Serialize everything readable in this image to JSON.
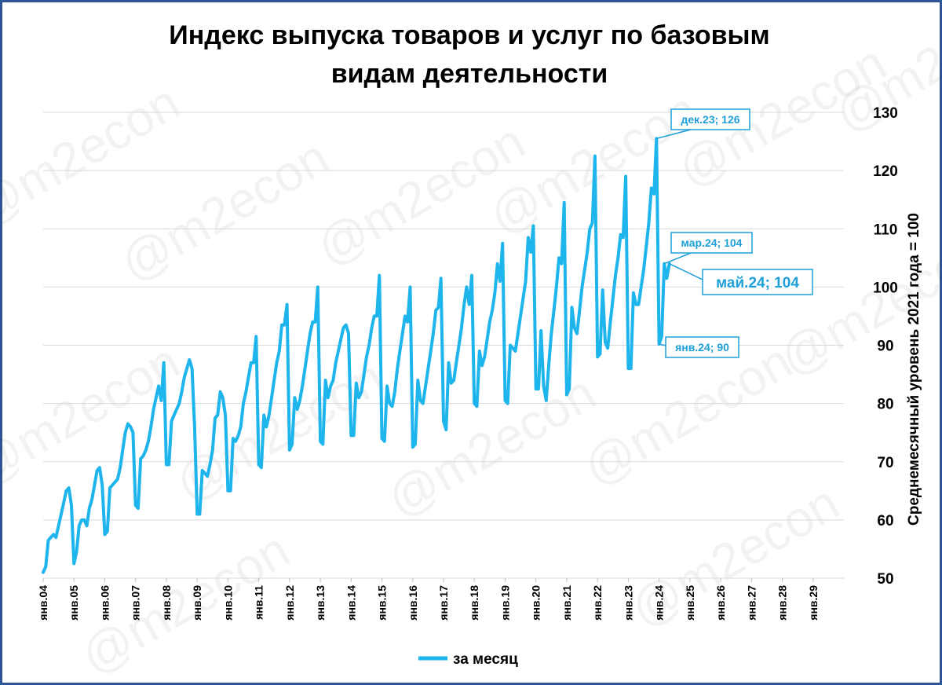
{
  "chart_data": {
    "type": "line",
    "title_lines": [
      "Индекс выпуска товаров и услуг по базовым",
      "видам деятельности"
    ],
    "ylabel": "Среднемесячный уровень 2021 года  =  100",
    "ylim": [
      50,
      130
    ],
    "yticks": [
      50,
      60,
      70,
      80,
      90,
      100,
      110,
      120,
      130
    ],
    "xticks": [
      "янв.04",
      "янв.05",
      "янв.06",
      "янв.07",
      "янв.08",
      "янв.09",
      "янв.10",
      "янв.11",
      "янв.12",
      "янв.13",
      "янв.14",
      "янв.15",
      "янв.16",
      "янв.17",
      "янв.18",
      "янв.19",
      "янв.20",
      "янв.21",
      "янв.22",
      "янв.23",
      "янв.24",
      "янв.25",
      "янв.26",
      "янв.27",
      "янв.28",
      "янв.29"
    ],
    "grid": true,
    "legend_position": "bottom",
    "series": [
      {
        "name": "за месяц",
        "color": "#1eb4ec",
        "start": "2004-01",
        "values": [
          51,
          52,
          56.5,
          57,
          57.5,
          57,
          59,
          61,
          63,
          65,
          65.5,
          62.5,
          52.5,
          54.5,
          59,
          60,
          60,
          59,
          62,
          63.5,
          66,
          68.5,
          69,
          66,
          57.5,
          58,
          65.5,
          66,
          66.5,
          67,
          69,
          72,
          75,
          76.5,
          76,
          75,
          62.5,
          62,
          70.5,
          71,
          72,
          73.5,
          76,
          79,
          81,
          83,
          80.5,
          87,
          69.5,
          69.5,
          77,
          78,
          79,
          80,
          82,
          84.5,
          86,
          87.5,
          86,
          76,
          61,
          61,
          68.5,
          68,
          67.5,
          69.5,
          72,
          77.5,
          78,
          82,
          81,
          78,
          65,
          65,
          74,
          73.5,
          74.5,
          76,
          80,
          82,
          84.5,
          87,
          87,
          91.5,
          69.5,
          69,
          78,
          76,
          78,
          81,
          84,
          87,
          89,
          93.5,
          93.5,
          97,
          72,
          73,
          81,
          79,
          80.5,
          83,
          86,
          89,
          92,
          94,
          94,
          100,
          73.5,
          73,
          84,
          81,
          83,
          84,
          87,
          89,
          91,
          93,
          93.5,
          92,
          74.5,
          74.5,
          83.5,
          81,
          82,
          85,
          88,
          90,
          93,
          95,
          95,
          102,
          74,
          73.5,
          83,
          80,
          79.5,
          82,
          86,
          89,
          92,
          95,
          94,
          100,
          72.5,
          73,
          84,
          80.5,
          80,
          83,
          86,
          89,
          92,
          96,
          96.5,
          101.5,
          77,
          75.5,
          87,
          83.5,
          84,
          87,
          90,
          93,
          97,
          100,
          97,
          102,
          80,
          79.5,
          89,
          86.5,
          88,
          91,
          94,
          96,
          99,
          104,
          101,
          107.5,
          80.5,
          80,
          90,
          89.5,
          89,
          92,
          95,
          98,
          101,
          108.5,
          106,
          110.5,
          82.5,
          82.5,
          92.5,
          83,
          80.5,
          86.5,
          92,
          96,
          100,
          105,
          104,
          114.5,
          81.5,
          82.5,
          96.5,
          93,
          92,
          96,
          100,
          103,
          106,
          110,
          111,
          122.5,
          88,
          88.5,
          99.5,
          90.5,
          89.5,
          94,
          98,
          102,
          105,
          109,
          108.5,
          119,
          86,
          86,
          99,
          97,
          97,
          100,
          103,
          107,
          111,
          117,
          116,
          125.5,
          90.2,
          91.5,
          104,
          101.5,
          104
        ]
      }
    ],
    "annotations": [
      {
        "label": "дек.23; 126",
        "point": "2023-12",
        "value": 125.5
      },
      {
        "label": "мар.24; 104",
        "point": "2024-03",
        "value": 104
      },
      {
        "label": "май.24; 104",
        "point": "2024-05",
        "value": 104
      },
      {
        "label": "янв.24; 90",
        "point": "2024-01",
        "value": 90.2
      }
    ]
  },
  "watermark": "@m2econ"
}
